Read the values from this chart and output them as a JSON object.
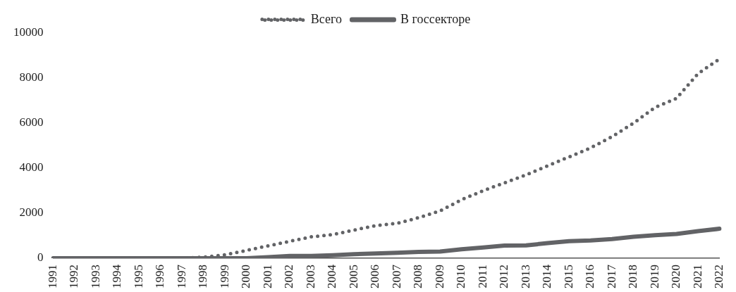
{
  "chart_data": {
    "type": "line",
    "categories": [
      "1991",
      "1992",
      "1993",
      "1994",
      "1995",
      "1996",
      "1997",
      "1998",
      "1999",
      "2000",
      "2001",
      "2002",
      "2003",
      "2004",
      "2005",
      "2006",
      "2007",
      "2008",
      "2009",
      "2010",
      "2011",
      "2012",
      "2013",
      "2014",
      "2015",
      "2016",
      "2017",
      "2018",
      "2019",
      "2020",
      "2021",
      "2022"
    ],
    "series": [
      {
        "name": "Всего",
        "color": "#626366",
        "line_style": "dotted",
        "values": [
          0,
          0,
          0,
          0,
          0,
          0,
          0,
          50,
          150,
          350,
          550,
          750,
          950,
          1050,
          1250,
          1450,
          1550,
          1800,
          2100,
          2600,
          3000,
          3350,
          3700,
          4100,
          4500,
          4900,
          5400,
          6000,
          6700,
          7100,
          8200,
          8850
        ]
      },
      {
        "name": "В госсекторе",
        "color": "#626366",
        "line_style": "solid",
        "values": [
          0,
          0,
          0,
          0,
          0,
          0,
          0,
          0,
          0,
          0,
          50,
          100,
          100,
          130,
          180,
          210,
          240,
          280,
          300,
          400,
          480,
          560,
          570,
          670,
          760,
          790,
          850,
          950,
          1020,
          1080,
          1200,
          1310
        ]
      }
    ],
    "ylim": [
      0,
      10000
    ],
    "yticks": [
      0,
      2000,
      4000,
      6000,
      8000,
      10000
    ],
    "grid": false,
    "legend": "top",
    "marker": "none"
  }
}
